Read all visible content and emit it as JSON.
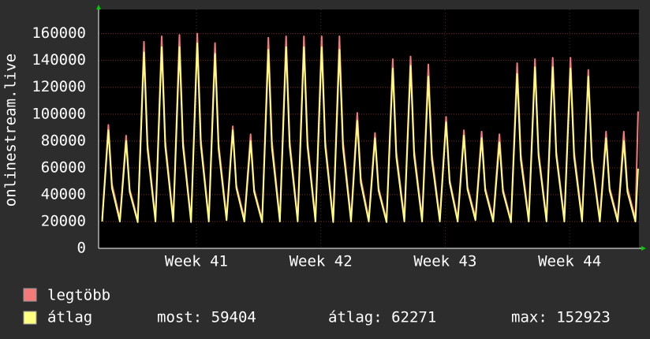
{
  "chart_data": {
    "type": "line",
    "ylabel": "onlinestream.live",
    "x": [
      0.2,
      0.55,
      0.75,
      1.2,
      1.55,
      1.75,
      2.2,
      2.55,
      2.75,
      3.2,
      3.55,
      3.75,
      4.2,
      4.55,
      4.75,
      5.2,
      5.55,
      5.75,
      6.2,
      6.55,
      6.75,
      7.2,
      7.55,
      7.75,
      8.2,
      8.55,
      8.75,
      9.2,
      9.55,
      9.75,
      10.2,
      10.55,
      10.75,
      11.2,
      11.55,
      11.75,
      12.2,
      12.55,
      12.75,
      13.2,
      13.55,
      13.75,
      14.2,
      14.55,
      14.75,
      15.2,
      15.55,
      15.75,
      16.2,
      16.55,
      16.75,
      17.2,
      17.55,
      17.75,
      18.2,
      18.55,
      18.75,
      19.2,
      19.55,
      19.75,
      20.2,
      20.55,
      20.75,
      21.2,
      21.55,
      21.75,
      22.2,
      22.55,
      22.75,
      23.2,
      23.55,
      23.75,
      24.2,
      24.55,
      24.75,
      25.2,
      25.55,
      25.75,
      26.2,
      26.55,
      26.75,
      27.2,
      27.55,
      27.75,
      28.2,
      28.55,
      28.75,
      29.2,
      29.55,
      29.75,
      30.2,
      30.35
    ],
    "series": [
      {
        "name": "legtöbb",
        "color": "#f47a7a",
        "values": [
          22000,
          92000,
          48000,
          22000,
          84000,
          44000,
          21000,
          154000,
          78000,
          22000,
          158000,
          80000,
          22000,
          159000,
          80000,
          21000,
          160000,
          81000,
          22000,
          153000,
          78000,
          23000,
          91000,
          47000,
          22000,
          85000,
          44000,
          21000,
          157000,
          80000,
          22000,
          158000,
          80000,
          22000,
          158000,
          80000,
          22000,
          158000,
          80000,
          21000,
          158000,
          80000,
          22000,
          101000,
          52000,
          22000,
          86000,
          45000,
          21000,
          141000,
          72000,
          22000,
          143000,
          73000,
          22000,
          137000,
          70000,
          22000,
          98000,
          51000,
          22000,
          88000,
          46000,
          23000,
          87000,
          45000,
          22000,
          85000,
          44000,
          21000,
          138000,
          70000,
          22000,
          141000,
          72000,
          22000,
          142000,
          72000,
          22000,
          142000,
          72000,
          22000,
          133000,
          68000,
          22000,
          87000,
          45000,
          22000,
          87000,
          45000,
          22000,
          102000
        ]
      },
      {
        "name": "átlag",
        "color": "#ffff80",
        "values": [
          20000,
          88000,
          45000,
          20000,
          80000,
          42000,
          19500,
          146000,
          74000,
          20000,
          150000,
          76000,
          20000,
          150000,
          76000,
          19500,
          152923,
          77000,
          20000,
          145000,
          74000,
          21000,
          88000,
          45000,
          20000,
          80000,
          42000,
          19500,
          148000,
          75000,
          20000,
          150000,
          76000,
          20000,
          150000,
          76000,
          20000,
          150000,
          76000,
          19500,
          148000,
          75000,
          20000,
          95000,
          49000,
          20000,
          82000,
          43000,
          19500,
          134000,
          68000,
          20000,
          136000,
          69000,
          20000,
          128000,
          66000,
          20000,
          94000,
          49000,
          20000,
          84000,
          44000,
          21000,
          82000,
          43000,
          20000,
          79000,
          42000,
          19500,
          130000,
          66000,
          20000,
          135000,
          69000,
          20000,
          135000,
          69000,
          20000,
          134000,
          68000,
          20000,
          128000,
          65000,
          20000,
          82000,
          43000,
          20000,
          80000,
          42000,
          20000,
          59404
        ]
      }
    ],
    "xlim": [
      0,
      30.4
    ],
    "xticks": [
      {
        "value": 5.5,
        "label": "Week 41"
      },
      {
        "value": 12.5,
        "label": "Week 42"
      },
      {
        "value": 19.5,
        "label": "Week 43"
      },
      {
        "value": 26.5,
        "label": "Week 44"
      }
    ],
    "ylim": [
      0,
      178000
    ],
    "yticks": [
      0,
      20000,
      40000,
      60000,
      80000,
      100000,
      120000,
      140000,
      160000
    ],
    "grid": true,
    "legend_stats": [
      "most: 59404",
      "átlag: 62271",
      "max: 152923"
    ]
  }
}
